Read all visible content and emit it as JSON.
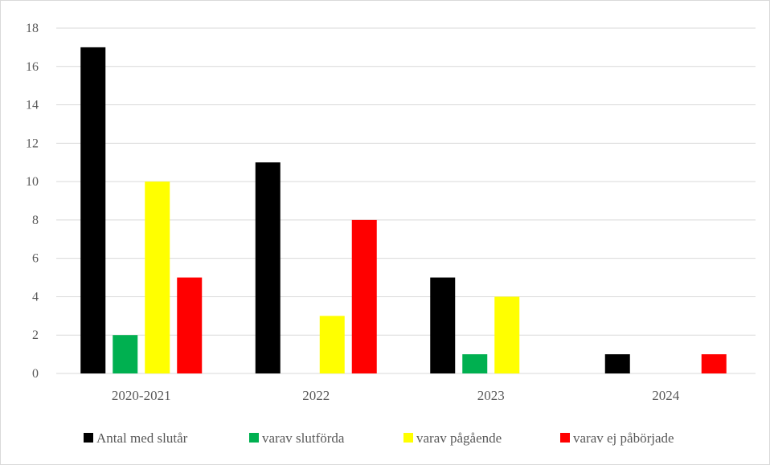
{
  "chart_data": {
    "type": "bar",
    "title": "",
    "xlabel": "",
    "ylabel": "",
    "categories": [
      "2020-2021",
      "2022",
      "2023",
      "2024"
    ],
    "ylim": [
      0,
      18
    ],
    "yticks": [
      "0",
      "2",
      "4",
      "6",
      "8",
      "10",
      "12",
      "14",
      "16",
      "18"
    ],
    "grid": true,
    "legend_position": "bottom",
    "series": [
      {
        "name": "Antal med slutår",
        "color": "#000000",
        "values": [
          17,
          11,
          5,
          1
        ]
      },
      {
        "name": "varav slutförda",
        "color": "#00b050",
        "values": [
          2,
          0,
          1,
          0
        ]
      },
      {
        "name": "varav pågående",
        "color": "#ffff00",
        "values": [
          10,
          3,
          4,
          0
        ]
      },
      {
        "name": "varav ej påbörjade",
        "color": "#ff0000",
        "values": [
          5,
          8,
          0,
          1
        ]
      }
    ]
  }
}
